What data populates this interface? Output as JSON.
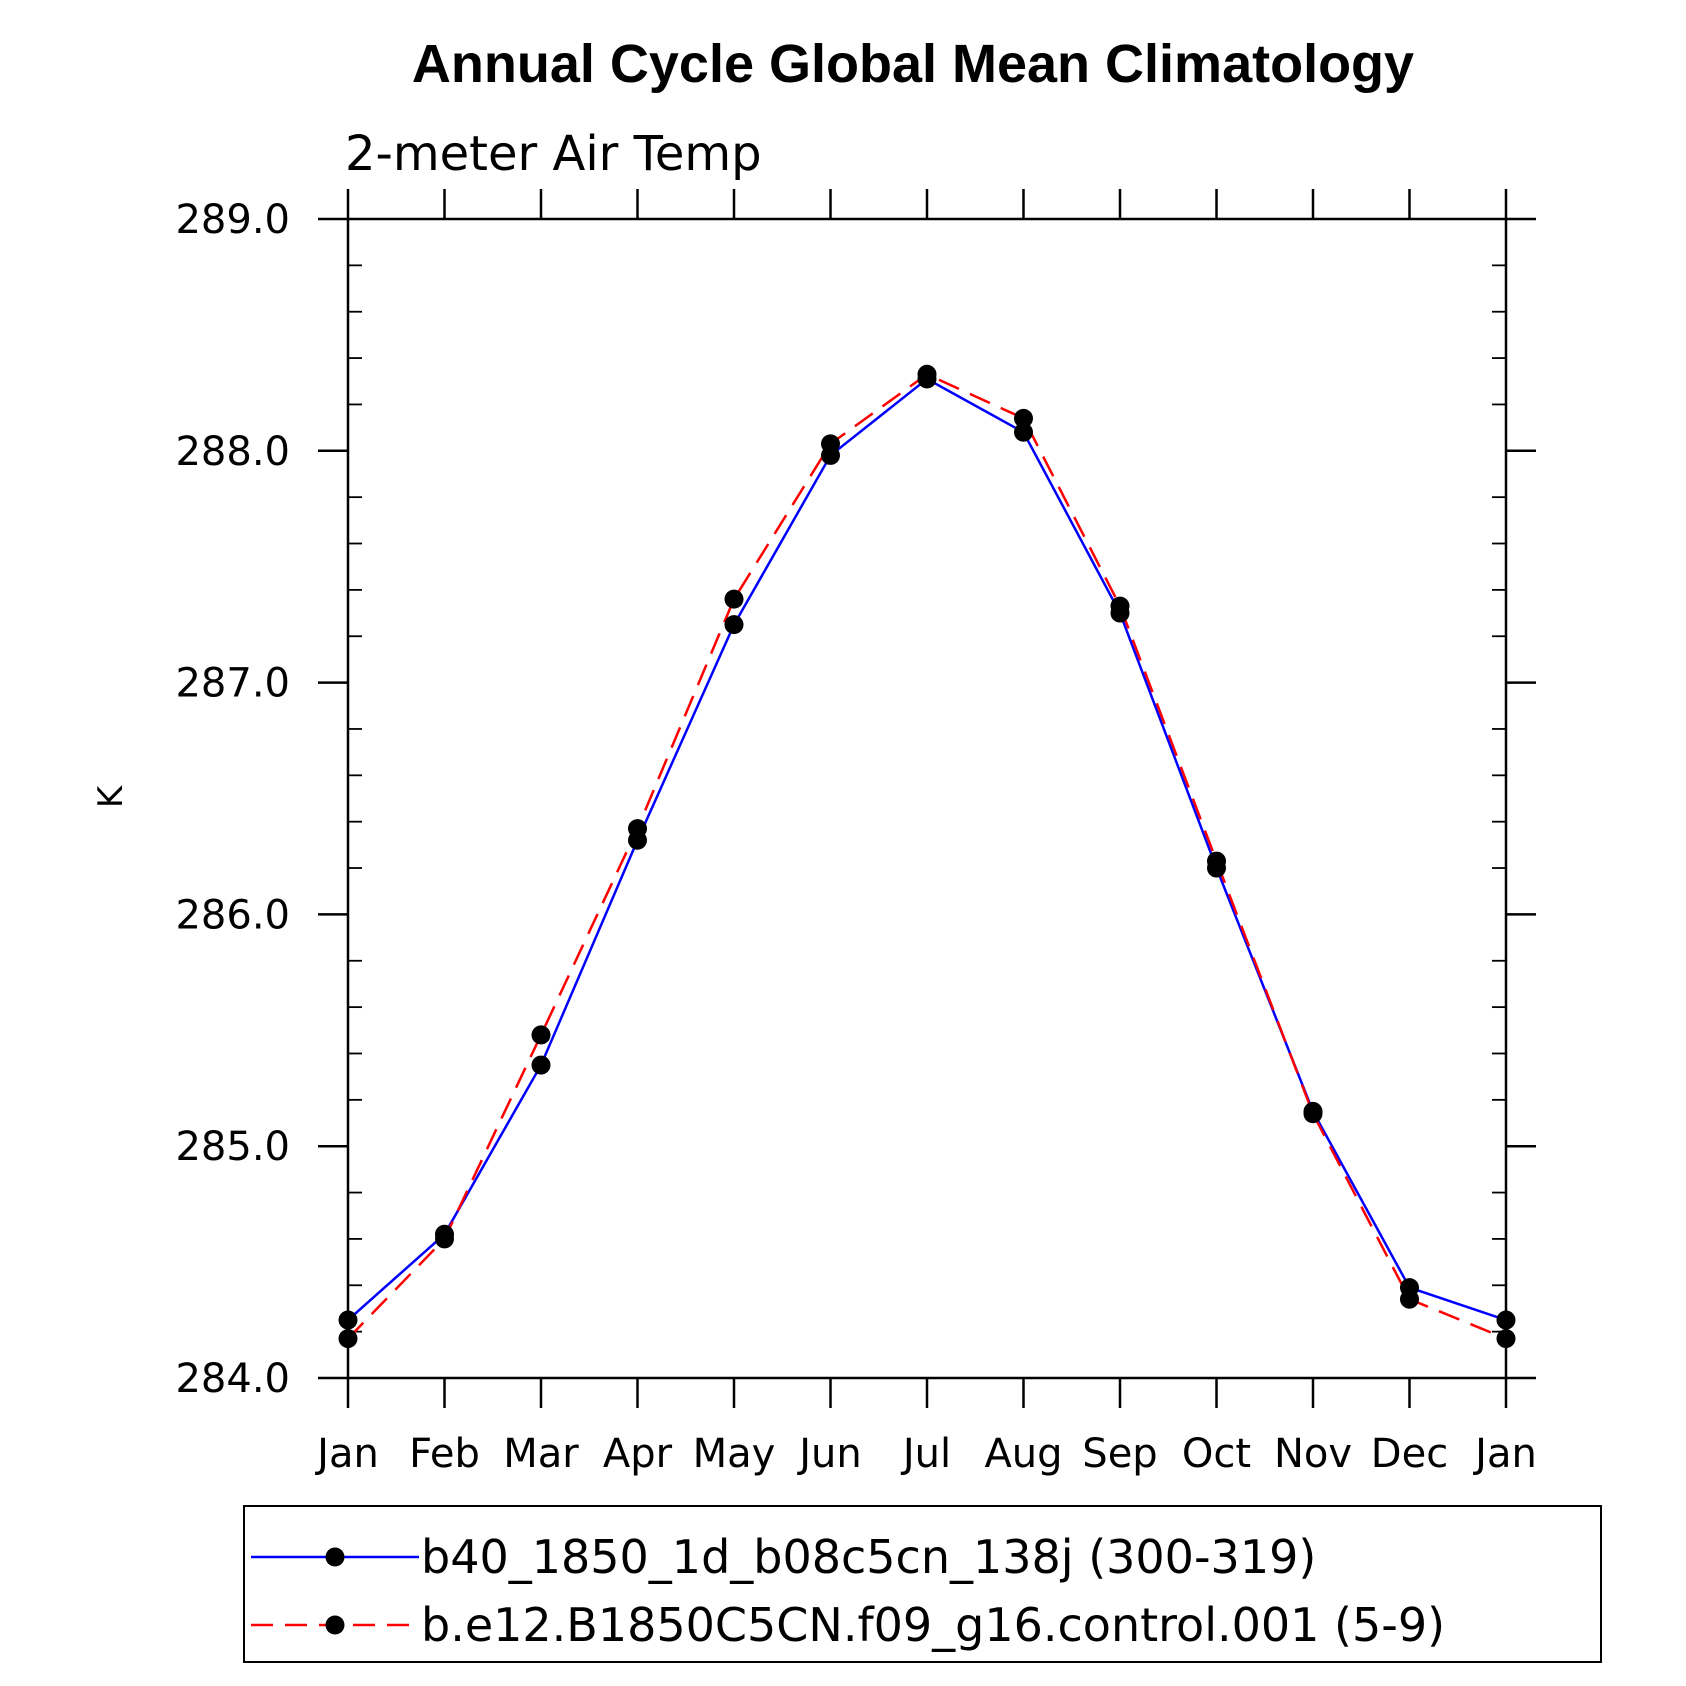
{
  "chart_data": {
    "type": "line",
    "title": "Annual Cycle Global Mean Climatology",
    "subtitle": "2-meter Air Temp",
    "ylabel": "K",
    "xlabel": "",
    "ylim": [
      284.0,
      289.0
    ],
    "yticks": [
      "284.0",
      "285.0",
      "286.0",
      "287.0",
      "288.0",
      "289.0"
    ],
    "categories": [
      "Jan",
      "Feb",
      "Mar",
      "Apr",
      "May",
      "Jun",
      "Jul",
      "Aug",
      "Sep",
      "Oct",
      "Nov",
      "Dec",
      "Jan"
    ],
    "series": [
      {
        "name": "b40_1850_1d_b08c5cn_138j (300-319)",
        "color": "#0000ff",
        "dash": "solid",
        "values": [
          284.25,
          284.62,
          285.35,
          286.32,
          287.25,
          287.98,
          288.31,
          288.08,
          287.3,
          286.2,
          285.15,
          284.39,
          284.25
        ]
      },
      {
        "name": "b.e12.B1850C5CN.f09_g16.control.001 (5-9)",
        "color": "#ff0000",
        "dash": "dashed",
        "values": [
          284.17,
          284.6,
          285.48,
          286.37,
          287.36,
          288.03,
          288.33,
          288.14,
          287.33,
          286.23,
          285.14,
          284.34,
          284.17
        ]
      }
    ],
    "legend_position": "bottom"
  }
}
